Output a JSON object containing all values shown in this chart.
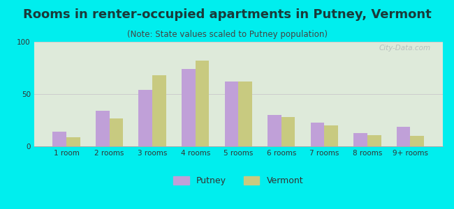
{
  "title": "Rooms in renter-occupied apartments in Putney, Vermont",
  "subtitle": "(Note: State values scaled to Putney population)",
  "categories": [
    "1 room",
    "2 rooms",
    "3 rooms",
    "4 rooms",
    "5 rooms",
    "6 rooms",
    "7 rooms",
    "8 rooms",
    "9+ rooms"
  ],
  "putney_values": [
    14,
    34,
    54,
    74,
    62,
    30,
    23,
    13,
    19
  ],
  "vermont_values": [
    9,
    27,
    68,
    82,
    62,
    28,
    20,
    11,
    10
  ],
  "putney_color": "#c0a0d8",
  "vermont_color": "#c8ca80",
  "bar_width": 0.32,
  "ylim": [
    0,
    100
  ],
  "yticks": [
    0,
    50,
    100
  ],
  "outer_bg": "#00eeee",
  "plot_bg": "#e8f0e0",
  "grid_color": "#cccccc",
  "watermark": "City-Data.com",
  "legend_putney": "Putney",
  "legend_vermont": "Vermont",
  "title_fontsize": 13,
  "subtitle_fontsize": 8.5,
  "axis_label_fontsize": 7.5,
  "legend_fontsize": 9,
  "title_color": "#1a3a3a",
  "subtitle_color": "#444444",
  "tick_color": "#333333"
}
